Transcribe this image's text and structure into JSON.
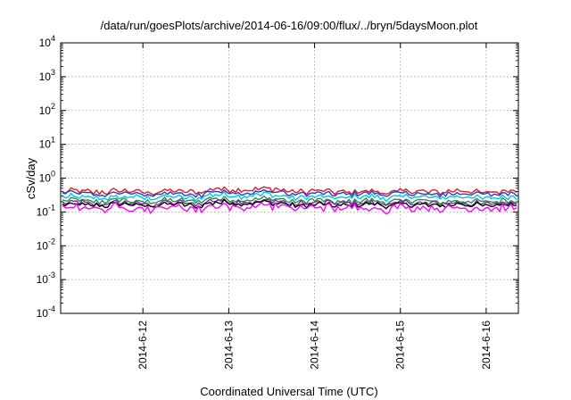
{
  "chart_data": {
    "type": "line",
    "title": "/data/run/goesPlots/archive/2014-06-16/09:00/flux/../bryn/5daysMoon.plot",
    "xlabel": "Coordinated Universal Time (UTC)",
    "ylabel": "cSv/day",
    "y_scale": "log",
    "ylim_exp": [
      -4,
      4
    ],
    "y_tick_labels": [
      {
        "base": "10",
        "exp": "-4"
      },
      {
        "base": "10",
        "exp": "-3"
      },
      {
        "base": "10",
        "exp": "-2"
      },
      {
        "base": "10",
        "exp": "-1"
      },
      {
        "base": "10",
        "exp": "0"
      },
      {
        "base": "10",
        "exp": "1"
      },
      {
        "base": "10",
        "exp": "2"
      },
      {
        "base": "10",
        "exp": "3"
      },
      {
        "base": "10",
        "exp": "4"
      }
    ],
    "xlim_days": [
      "2014-06-11T01:00",
      "2014-06-16T09:00"
    ],
    "x_tick_labels": [
      "2014-6-12",
      "2014-6-13",
      "2014-6-14",
      "2014-6-15",
      "2014-6-16"
    ],
    "x_tick_dates": [
      "2014-06-12",
      "2014-06-13",
      "2014-06-14",
      "2014-06-15",
      "2014-06-16"
    ],
    "grid": true,
    "series": [
      {
        "color": "#e41a1c",
        "level": 0.4
      },
      {
        "color": "#1f3fd6",
        "level": 0.34
      },
      {
        "color": "#00c8d0",
        "level": 0.27
      },
      {
        "color": "#2e8b57",
        "level": 0.21
      },
      {
        "color": "#7b2d8e",
        "level": 0.18
      },
      {
        "color": "#000000",
        "level": 0.16
      },
      {
        "color": "#ff00ff",
        "level": 0.13
      }
    ]
  }
}
